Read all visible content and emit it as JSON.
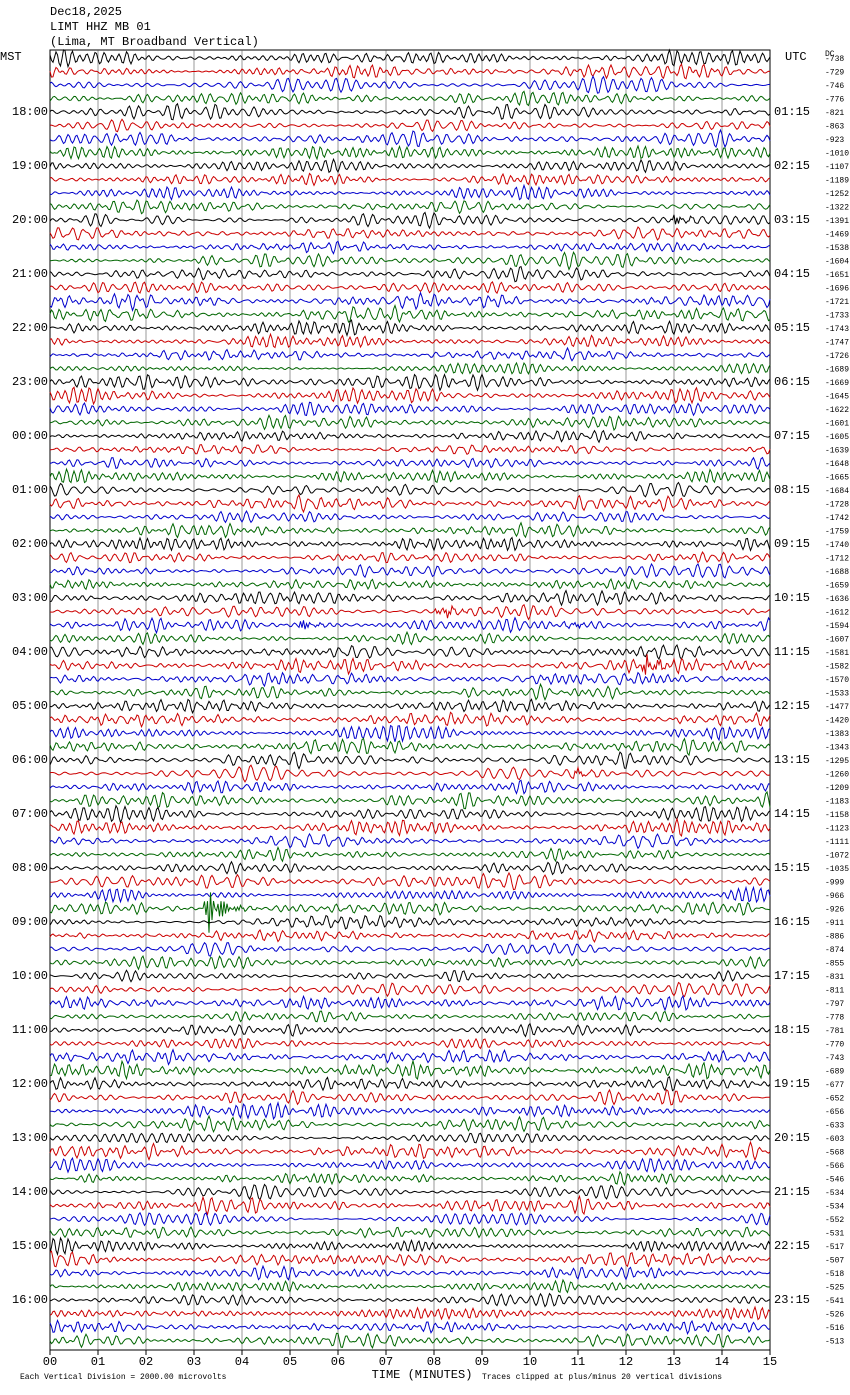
{
  "header": {
    "lines": [
      "Dec18,2025",
      "LIMT HHZ MB 01",
      "(Lima, MT Broadband Vertical)"
    ],
    "left_zone": "MST",
    "right_zone": "UTC",
    "offset_heading": "DC"
  },
  "left_labels": [
    "18:00",
    "19:00",
    "20:00",
    "21:00",
    "22:00",
    "23:00",
    "00:00",
    "01:00",
    "02:00",
    "03:00",
    "04:00",
    "05:00",
    "06:00",
    "07:00",
    "08:00",
    "09:00",
    "10:00",
    "11:00",
    "12:00",
    "13:00",
    "14:00",
    "15:00",
    "16:00"
  ],
  "right_labels": [
    "01:15",
    "02:15",
    "03:15",
    "04:15",
    "05:15",
    "06:15",
    "07:15",
    "08:15",
    "09:15",
    "10:15",
    "11:15",
    "12:15",
    "13:15",
    "14:15",
    "15:15",
    "16:15",
    "17:15",
    "18:15",
    "19:15",
    "20:15",
    "21:15",
    "22:15",
    "23:15"
  ],
  "offsets": [
    "-738",
    "-729",
    "-746",
    "-776",
    "-821",
    "-863",
    "-923",
    "-1010",
    "-1107",
    "-1189",
    "-1252",
    "-1322",
    "-1391",
    "-1469",
    "-1538",
    "-1604",
    "-1651",
    "-1696",
    "-1721",
    "-1733",
    "-1743",
    "-1747",
    "-1726",
    "-1689",
    "-1669",
    "-1645",
    "-1622",
    "-1601",
    "-1605",
    "-1639",
    "-1648",
    "-1665",
    "-1684",
    "-1728",
    "-1742",
    "-1759",
    "-1740",
    "-1712",
    "-1688",
    "-1659",
    "-1636",
    "-1612",
    "-1594",
    "-1607",
    "-1581",
    "-1582",
    "-1570",
    "-1533",
    "-1477",
    "-1420",
    "-1383",
    "-1343",
    "-1295",
    "-1260",
    "-1209",
    "-1183",
    "-1158",
    "-1123",
    "-1111",
    "-1072",
    "-1035",
    "-999",
    "-966",
    "-926",
    "-911",
    "-886",
    "-874",
    "-855",
    "-831",
    "-811",
    "-797",
    "-778",
    "-781",
    "-770",
    "-743",
    "-689",
    "-677",
    "-652",
    "-656",
    "-633",
    "-603",
    "-568",
    "-566",
    "-546",
    "-534",
    "-534",
    "-552",
    "-531",
    "-517",
    "-507",
    "-518",
    "-525",
    "-541",
    "-526",
    "-516",
    "-513"
  ],
  "x_ticks": [
    "00",
    "01",
    "02",
    "03",
    "04",
    "05",
    "06",
    "07",
    "08",
    "09",
    "10",
    "11",
    "12",
    "13",
    "14",
    "15"
  ],
  "x_label": "TIME (MINUTES)",
  "footer": {
    "scale_note": "Each Vertical Division = 2000.00 microvolts",
    "clip_note": "Traces clipped at plus/minus 20 vertical divisions"
  }
}
